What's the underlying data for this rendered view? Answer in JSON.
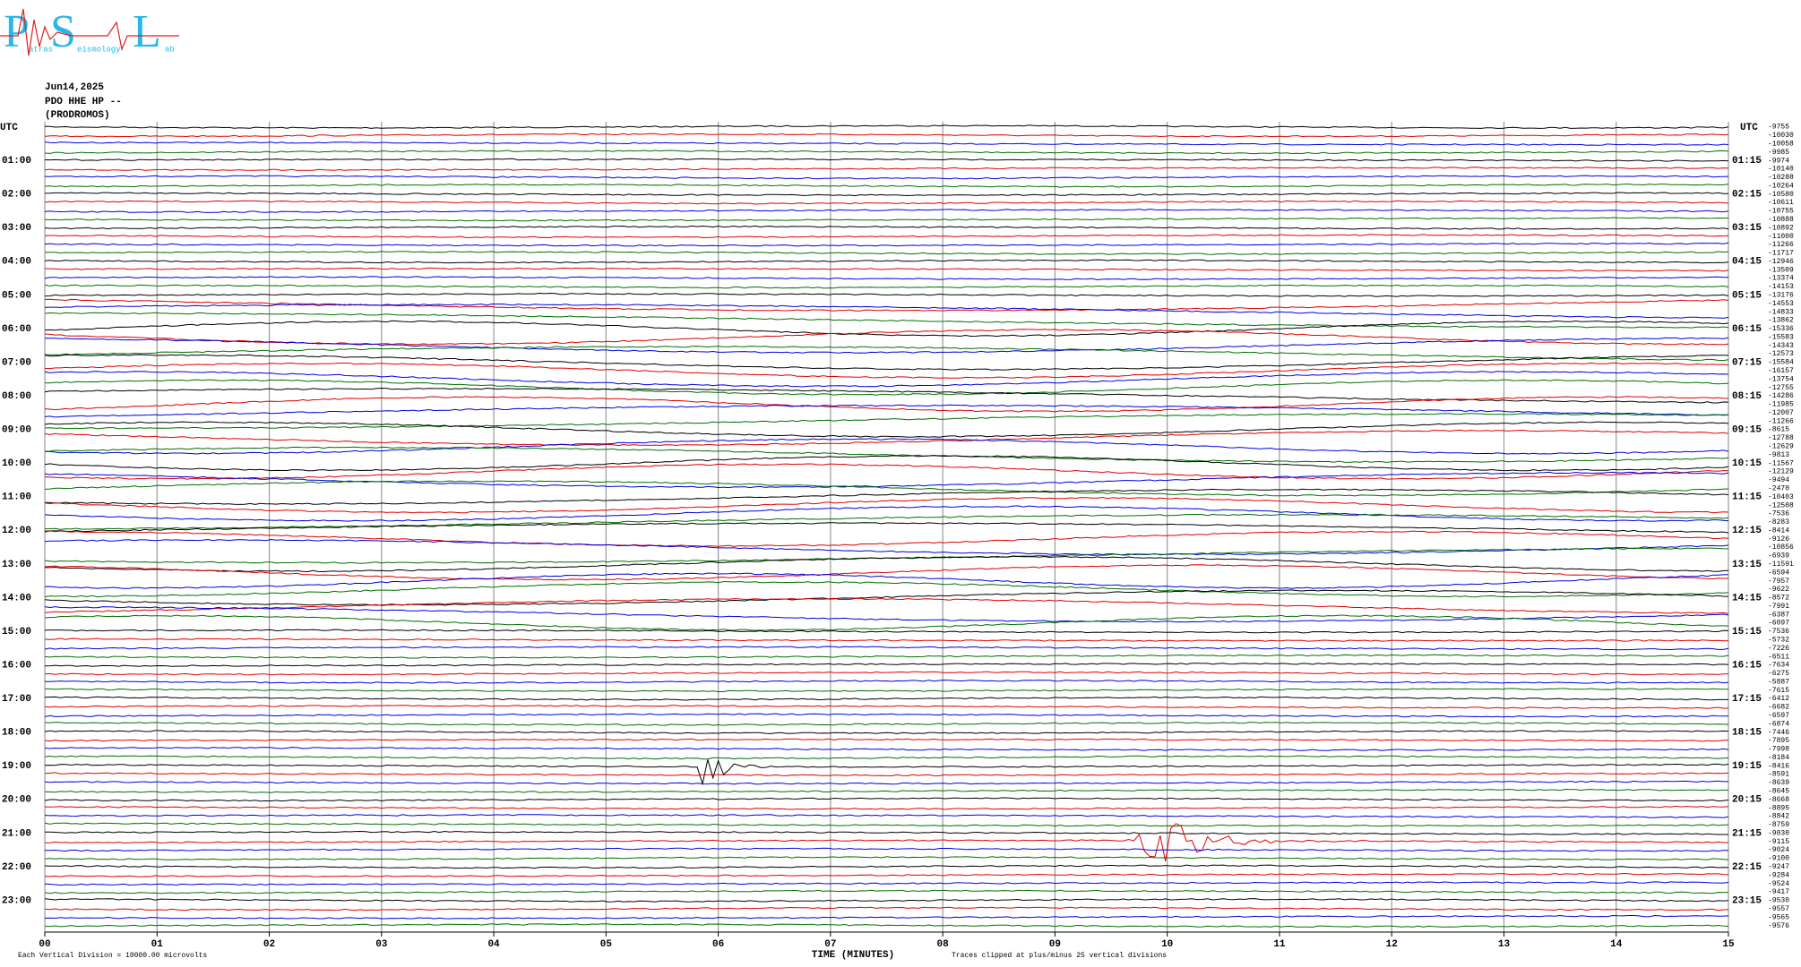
{
  "logo": {
    "p": "P",
    "s": "S",
    "l": "L",
    "p_rest": "atras",
    "s_rest": "eismology",
    "l_rest": "ab"
  },
  "date": "Jun14,2025",
  "station": "PDO HHE HP --",
  "location": "(PRODROMOS)",
  "left_axis_title": "UTC",
  "right_axis_title": "UTC",
  "left_labels": [
    "01:00",
    "02:00",
    "03:00",
    "04:00",
    "05:00",
    "06:00",
    "07:00",
    "08:00",
    "09:00",
    "10:00",
    "11:00",
    "12:00",
    "13:00",
    "14:00",
    "15:00",
    "16:00",
    "17:00",
    "18:00",
    "19:00",
    "20:00",
    "21:00",
    "22:00",
    "23:00"
  ],
  "right_labels": [
    "01:15",
    "02:15",
    "03:15",
    "04:15",
    "05:15",
    "06:15",
    "07:15",
    "08:15",
    "09:15",
    "10:15",
    "11:15",
    "12:15",
    "13:15",
    "14:15",
    "15:15",
    "16:15",
    "17:15",
    "18:15",
    "19:15",
    "20:15",
    "21:15",
    "22:15",
    "23:15"
  ],
  "x_labels": [
    "00",
    "01",
    "02",
    "03",
    "04",
    "05",
    "06",
    "07",
    "08",
    "09",
    "10",
    "11",
    "12",
    "13",
    "14",
    "15"
  ],
  "x_title": "TIME (MINUTES)",
  "footer_left": "Each Vertical Division = 10000.00 microvolts",
  "footer_right": "Traces clipped at plus/minus 25 vertical divisions",
  "trace_offsets": [
    -9755,
    -10030,
    -10058,
    -9985,
    -9974,
    -10140,
    -10288,
    -10264,
    -10580,
    -10611,
    -10755,
    -10888,
    -10892,
    -11000,
    -11266,
    -11717,
    -12946,
    -13509,
    -13374,
    -14153,
    -13176,
    -14553,
    -14833,
    -13862,
    -15336,
    -15583,
    -14343,
    -12573,
    -15584,
    -16157,
    -13754,
    -12755,
    -14286,
    -11985,
    -12007,
    -11266,
    -8615,
    -12788,
    -12629,
    -9813,
    -11567,
    -12129,
    -9494,
    -2470,
    -10403,
    -12508,
    -7536,
    -8283,
    -8414,
    -9126,
    -10856,
    -6939,
    -11591,
    -6594,
    -7957,
    -9622,
    -8572,
    -7991,
    -6387,
    -6097,
    -7536,
    -5732,
    -7226,
    -6511,
    -7634,
    -6275,
    -5887,
    -7615,
    -6412,
    -6682,
    -6597,
    -6874,
    -7446,
    -7895,
    -7998,
    -8184,
    -8416,
    -8591,
    -8639,
    -8645,
    -8668,
    -8895,
    -8842,
    -8759,
    -9030,
    -9115,
    -9024,
    -9100,
    -9247,
    -9284,
    -9524,
    -9417,
    -9530,
    -9557,
    -9565,
    -9576
  ]
}
